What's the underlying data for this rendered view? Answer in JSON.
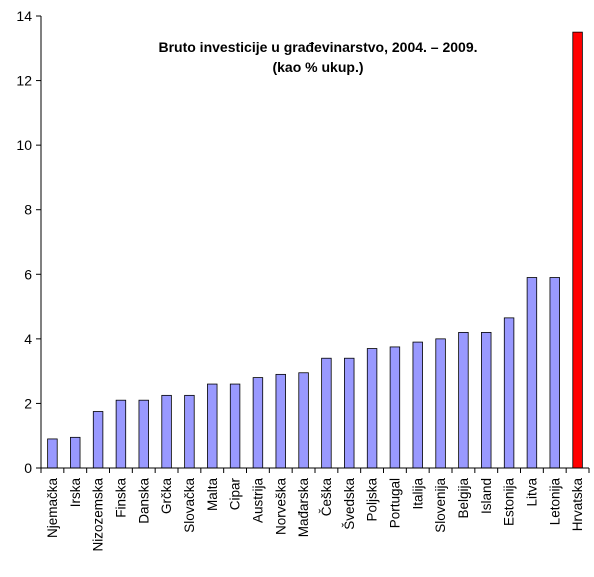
{
  "chart_data": {
    "type": "bar",
    "title": "Bruto investicije u  građevinarstvo, 2004. – 2009.",
    "subtitle": "(kao % ukup.)",
    "xlabel": "",
    "ylabel": "",
    "ylim": [
      0,
      14
    ],
    "yticks": [
      0,
      2,
      4,
      6,
      8,
      10,
      12,
      14
    ],
    "grid": false,
    "legend": "none",
    "categories": [
      "Njemačka",
      "Irska",
      "Nizozemska",
      "Finska",
      "Danska",
      "Grčka",
      "Slovačka",
      "Malta",
      "Cipar",
      "Austrija",
      "Norveška",
      "Mađarska",
      "Češka",
      "Švedska",
      "Poljska",
      "Portugal",
      "Italija",
      "Slovenija",
      "Belgija",
      "Island",
      "Estonija",
      "Litva",
      "Letonija",
      "Hrvatska"
    ],
    "values": [
      0.9,
      0.95,
      1.75,
      2.1,
      2.1,
      2.25,
      2.25,
      2.6,
      2.6,
      2.8,
      2.9,
      2.95,
      3.4,
      3.4,
      3.7,
      3.75,
      3.9,
      4.0,
      4.2,
      4.2,
      4.65,
      5.9,
      5.9,
      13.5
    ],
    "colors": {
      "default": "#9999ff",
      "highlight": "#ff0000",
      "highlight_category": "Hrvatska",
      "axis": "#000000"
    }
  }
}
